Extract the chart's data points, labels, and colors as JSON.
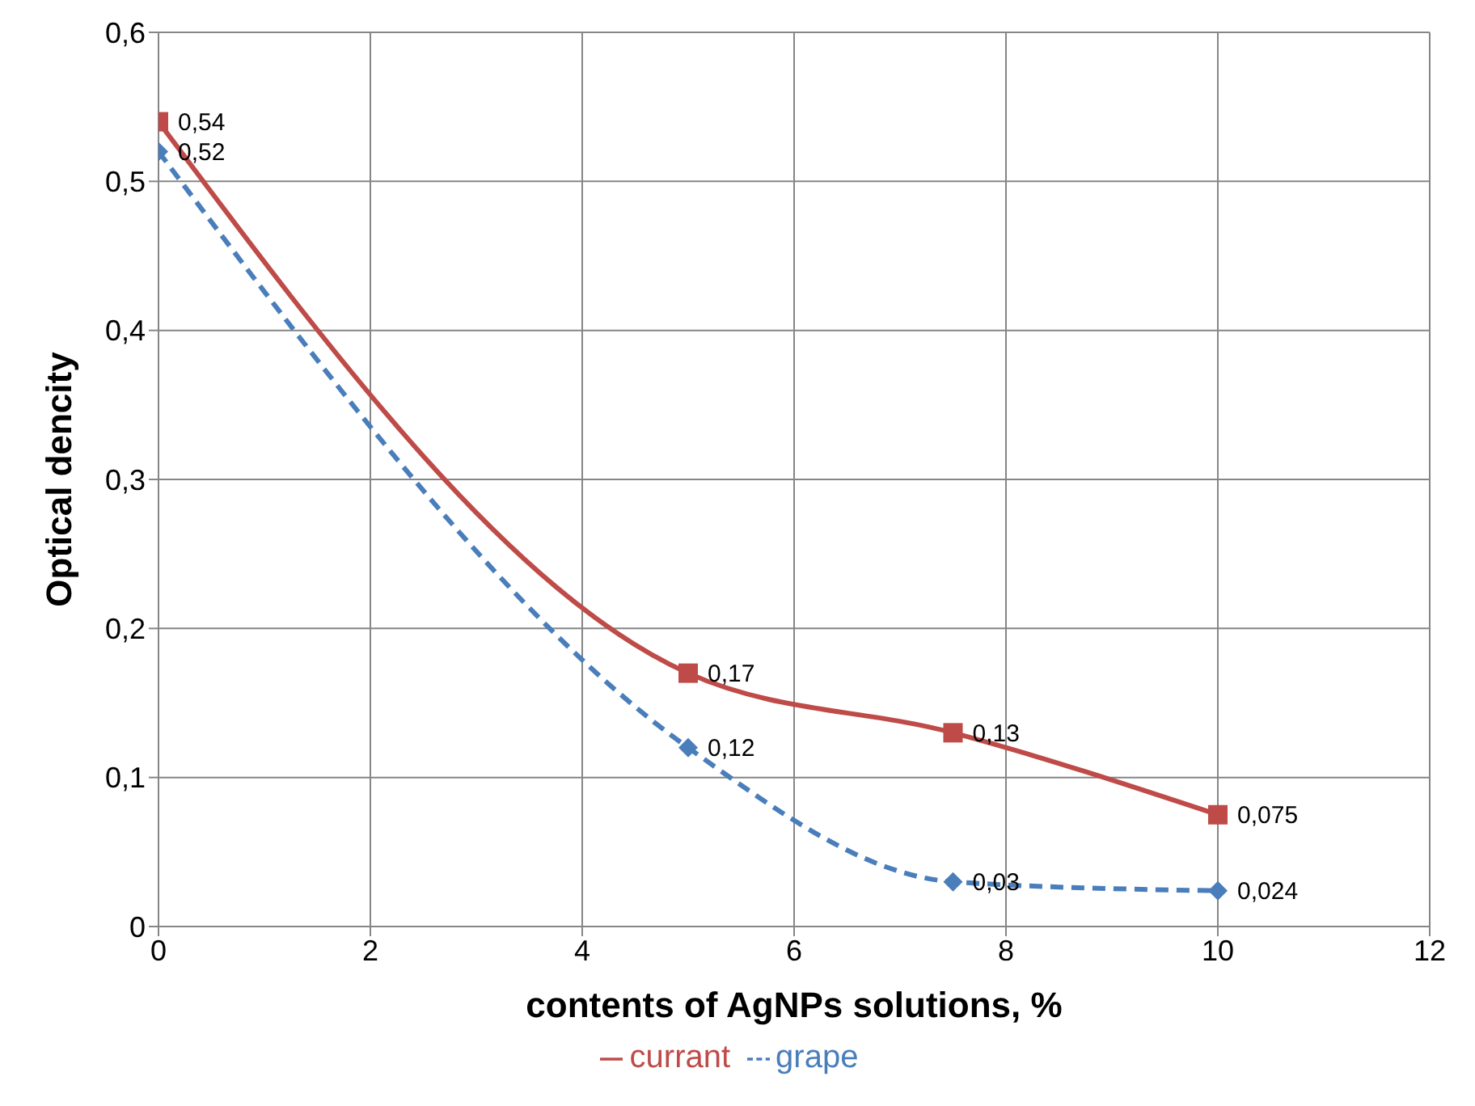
{
  "chart_data": {
    "type": "line",
    "xlabel": "contents of AgNPs solutions, %",
    "ylabel": "Optical dencity",
    "series": [
      {
        "name": "grape",
        "color": "#4a7ebb",
        "x": [
          0,
          5,
          7.5,
          10
        ],
        "values": [
          0.52,
          0.12,
          0.03,
          0.024
        ],
        "value_labels": [
          "0,52",
          "0,12",
          "0,03",
          "0,024"
        ],
        "marker": "diamond",
        "line_style": "dashed"
      },
      {
        "name": "currant",
        "color": "#be4b48",
        "x": [
          0,
          5,
          7.5,
          10
        ],
        "values": [
          0.54,
          0.17,
          0.13,
          0.075
        ],
        "value_labels": [
          "0,54",
          "0,17",
          "0,13",
          "0,075"
        ],
        "marker": "square",
        "line_style": "solid"
      }
    ],
    "xlim": [
      0,
      12
    ],
    "xticks": [
      0,
      2,
      4,
      6,
      8,
      10,
      12
    ],
    "ylim": [
      0,
      0.6
    ],
    "yticks": [
      0,
      {
        "value": 0.1,
        "label": "0,1"
      },
      {
        "value": 0.2,
        "label": "0,2"
      },
      {
        "value": 0.3,
        "label": "0,3"
      },
      {
        "value": 0.4,
        "label": "0,4"
      },
      {
        "value": 0.5,
        "label": "0,5"
      },
      {
        "value": 0.6,
        "label": "0,6"
      }
    ],
    "grid": true,
    "legend": "bottom"
  }
}
